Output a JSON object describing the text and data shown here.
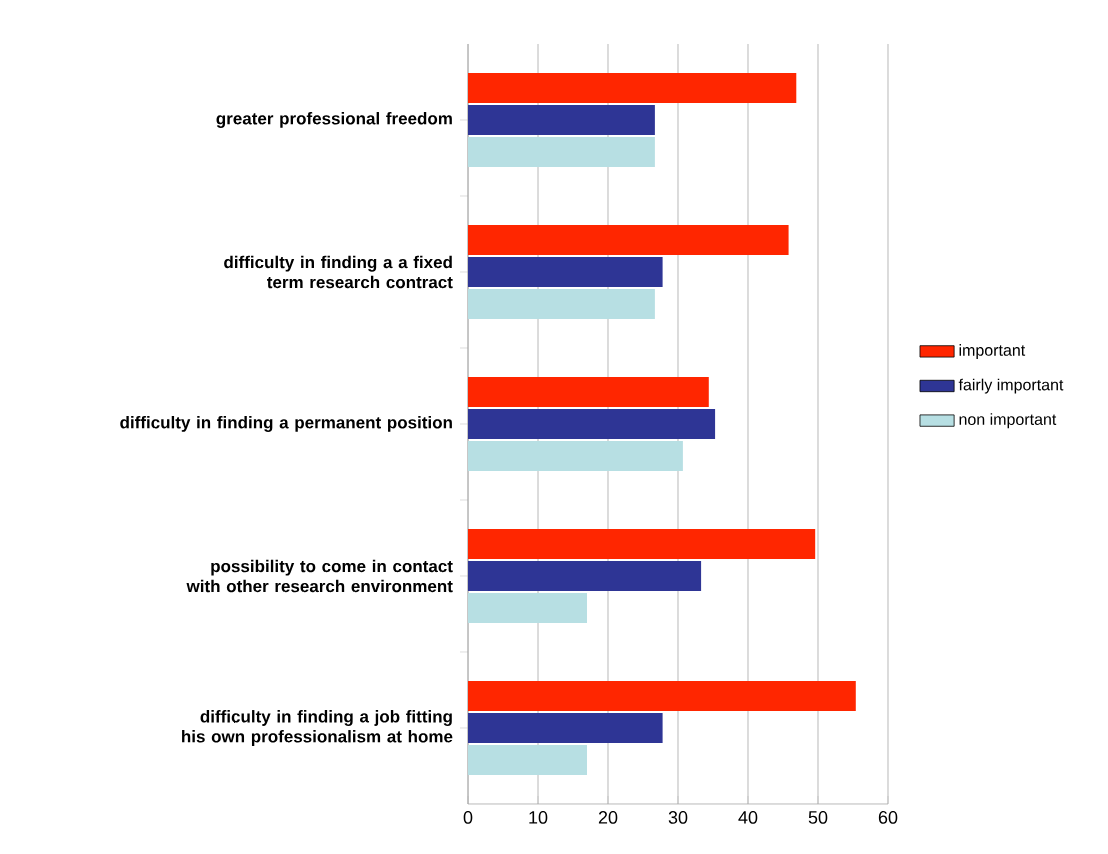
{
  "chart_data": {
    "type": "bar",
    "orientation": "horizontal",
    "categories": [
      "greater professional freedom",
      "difficulty in finding a a fixed term research contract",
      "difficulty in finding a permanent position",
      "possibility to come in contact with other research environment",
      "difficulty in finding a job fitting his own professionalism at home"
    ],
    "series": [
      {
        "name": "important",
        "color": "#ff2600",
        "values": [
          46.9,
          45.8,
          34.4,
          49.6,
          55.4
        ]
      },
      {
        "name": "fairly important",
        "color": "#2e3595",
        "values": [
          26.7,
          27.8,
          35.3,
          33.3,
          27.8
        ]
      },
      {
        "name": "non important",
        "color": "#b7dfe3",
        "values": [
          26.7,
          26.7,
          30.7,
          17.0,
          17.0
        ]
      }
    ],
    "xlim": [
      0,
      60
    ],
    "xticks": [
      0,
      10,
      20,
      30,
      40,
      50,
      60
    ],
    "grid": "x",
    "legend": "right"
  }
}
